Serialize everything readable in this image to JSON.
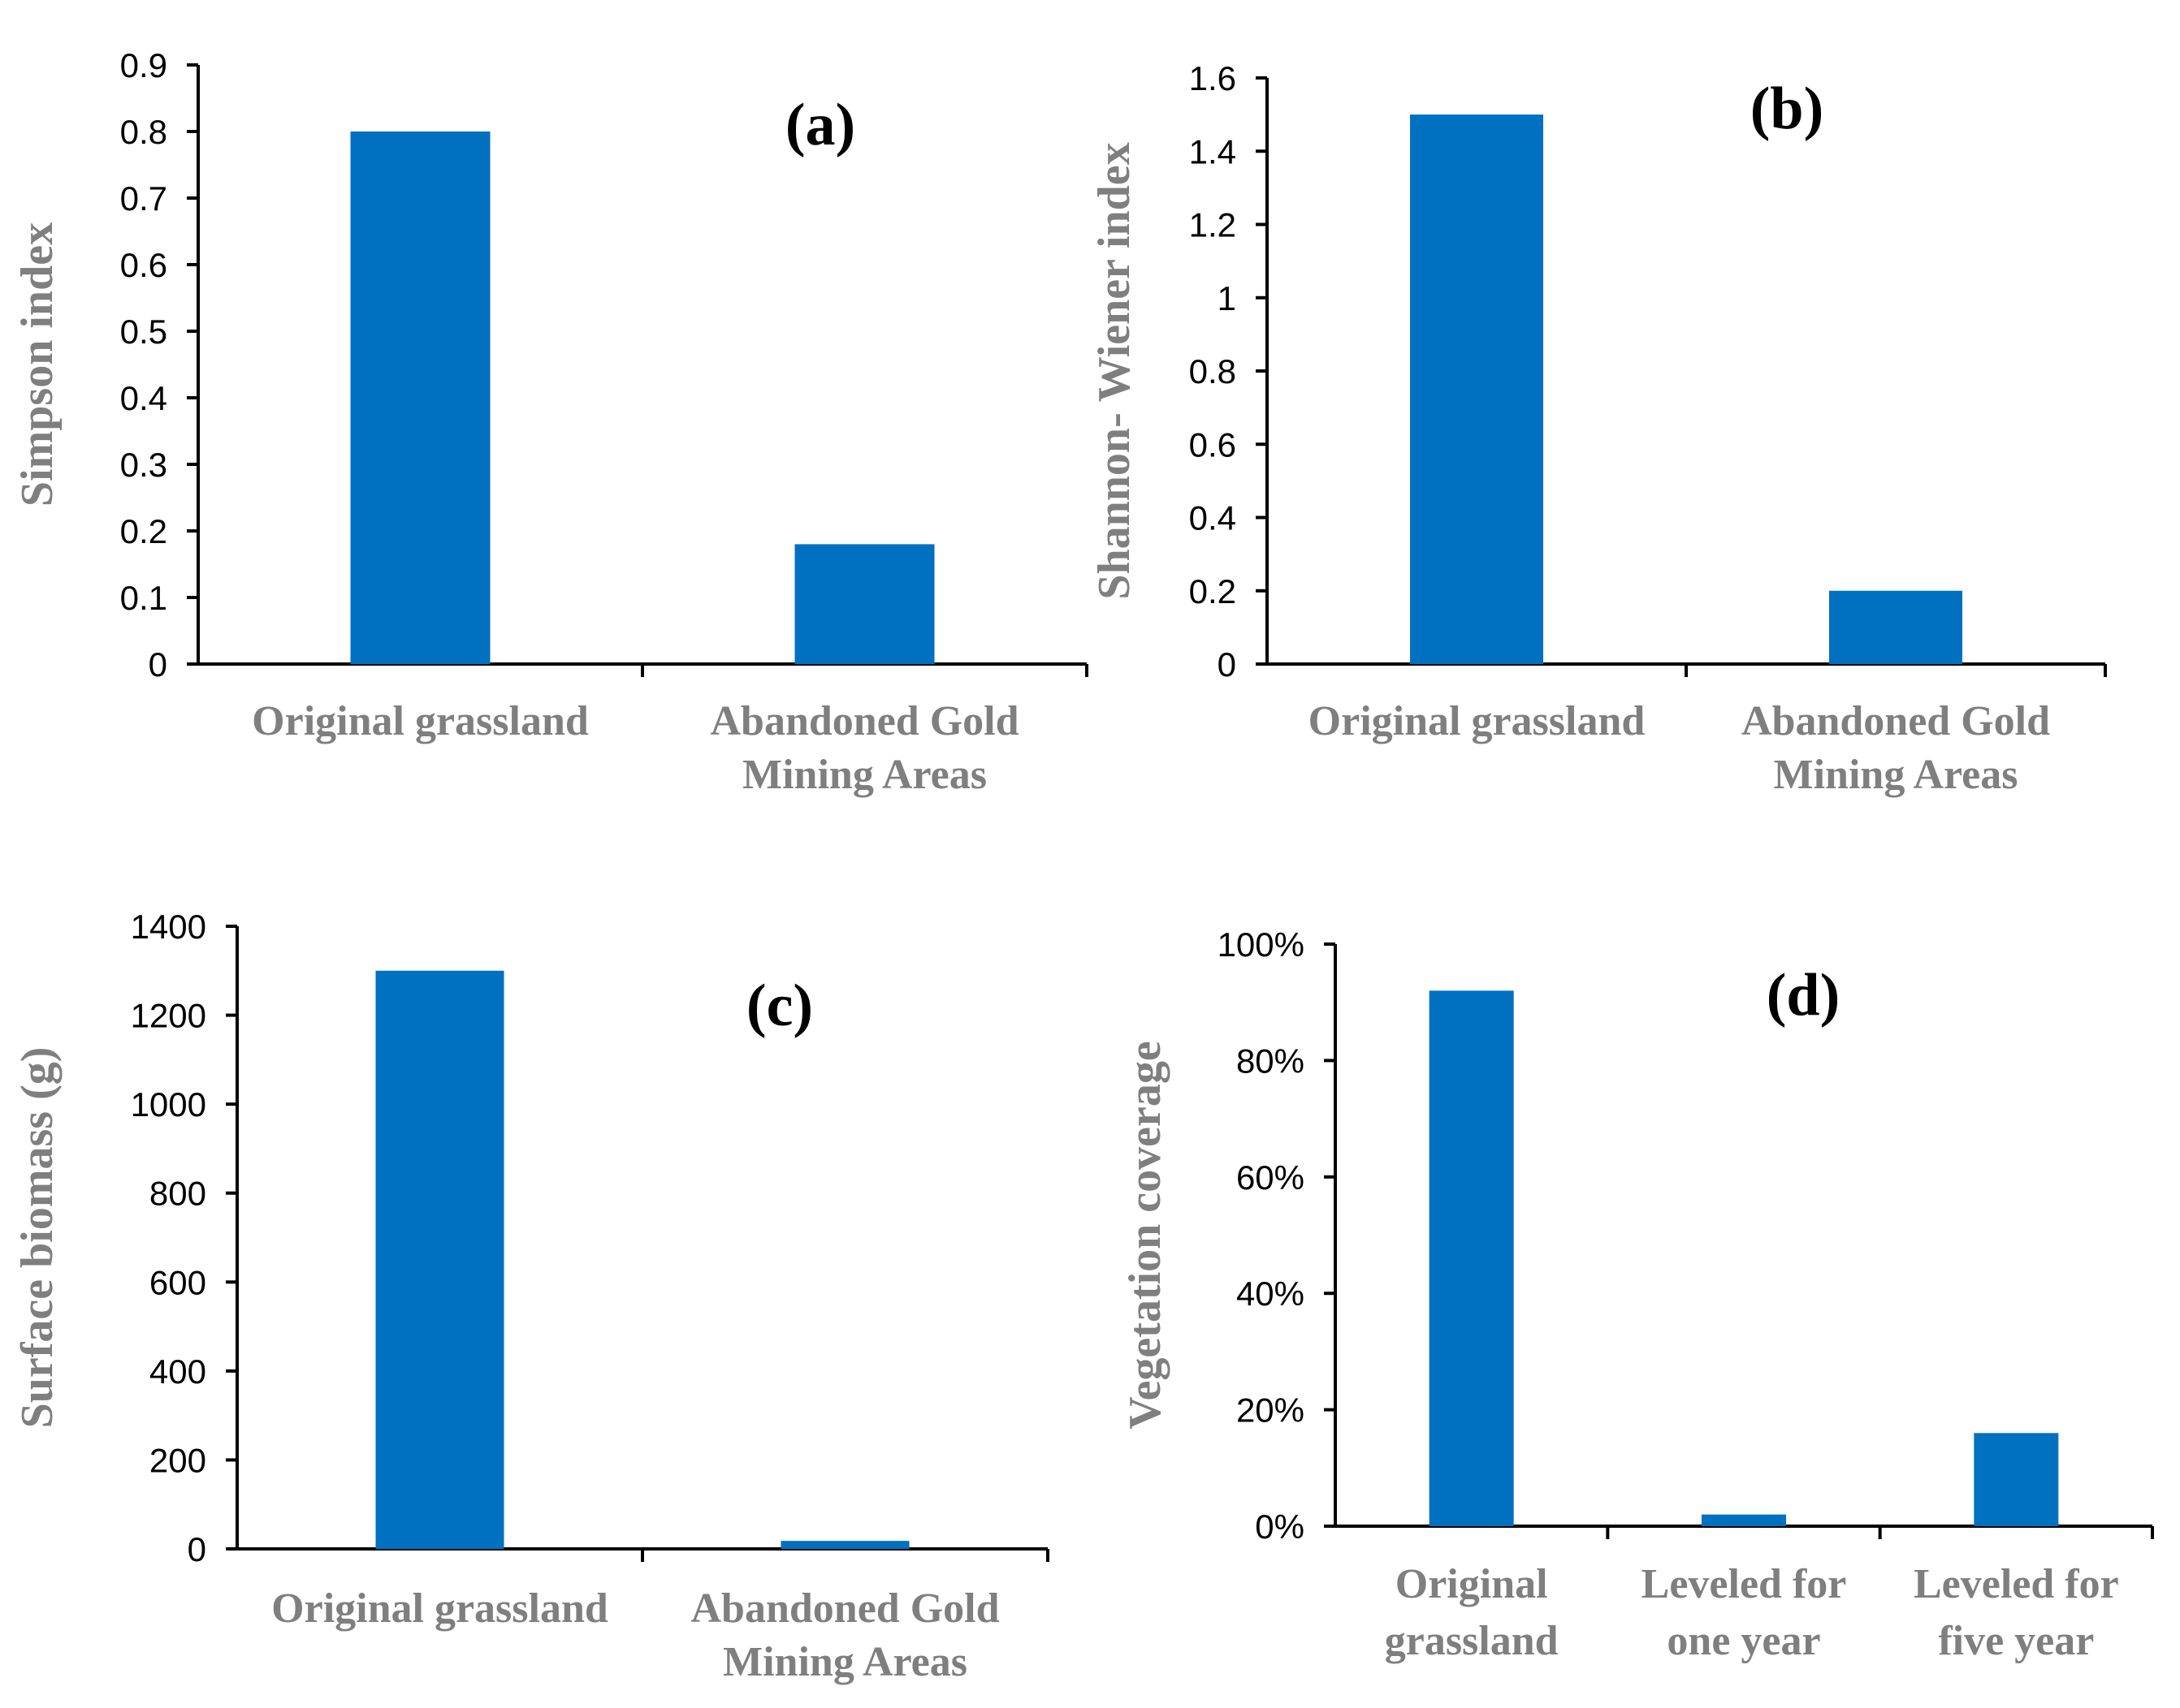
{
  "chart_data": [
    {
      "id": "a",
      "type": "bar",
      "panel_label": "(a)",
      "ylabel": "Simpson index",
      "xlabel": "",
      "categories": [
        [
          "Original grassland"
        ],
        [
          "Abandoned Gold",
          "Mining Areas"
        ]
      ],
      "values": [
        0.8,
        0.18
      ],
      "ylim": [
        0,
        0.9
      ],
      "yticks": [
        0,
        0.1,
        0.2,
        0.3,
        0.4,
        0.5,
        0.6,
        0.7,
        0.8,
        0.9
      ],
      "ytick_labels": [
        "0",
        "0.1",
        "0.2",
        "0.3",
        "0.4",
        "0.5",
        "0.6",
        "0.7",
        "0.8",
        "0.9"
      ],
      "color": "#0070c0",
      "grid": false
    },
    {
      "id": "b",
      "type": "bar",
      "panel_label": "(b)",
      "ylabel": "Shannon- Wiener index",
      "xlabel": "",
      "categories": [
        [
          "Original grassland"
        ],
        [
          "Abandoned Gold",
          "Mining Areas"
        ]
      ],
      "values": [
        1.5,
        0.2
      ],
      "ylim": [
        0,
        1.6
      ],
      "yticks": [
        0,
        0.2,
        0.4,
        0.6,
        0.8,
        1.0,
        1.2,
        1.4,
        1.6
      ],
      "ytick_labels": [
        "0",
        "0.2",
        "0.4",
        "0.6",
        "0.8",
        "1",
        "1.2",
        "1.4",
        "1.6"
      ],
      "color": "#0070c0",
      "grid": false
    },
    {
      "id": "c",
      "type": "bar",
      "panel_label": "(c)",
      "ylabel": "Surface biomass (g)",
      "xlabel": "",
      "categories": [
        [
          "Original grassland"
        ],
        [
          "Abandoned Gold",
          "Mining Areas"
        ]
      ],
      "values": [
        1300,
        18
      ],
      "ylim": [
        0,
        1400
      ],
      "yticks": [
        0,
        200,
        400,
        600,
        800,
        1000,
        1200,
        1400
      ],
      "ytick_labels": [
        "0",
        "200",
        "400",
        "600",
        "800",
        "1000",
        "1200",
        "1400"
      ],
      "color": "#0070c0",
      "grid": false
    },
    {
      "id": "d",
      "type": "bar",
      "panel_label": "(d)",
      "ylabel": "Vegetation coverage",
      "xlabel": "",
      "categories": [
        [
          "Original",
          "grassland"
        ],
        [
          "Leveled for",
          "one year"
        ],
        [
          "Leveled for",
          "five year"
        ]
      ],
      "values": [
        0.92,
        0.02,
        0.16
      ],
      "ylim": [
        0,
        1.0
      ],
      "yticks": [
        0,
        0.2,
        0.4,
        0.6,
        0.8,
        1.0
      ],
      "ytick_labels": [
        "0%",
        "20%",
        "40%",
        "60%",
        "80%",
        "100%"
      ],
      "color": "#0070c0",
      "grid": false
    }
  ]
}
